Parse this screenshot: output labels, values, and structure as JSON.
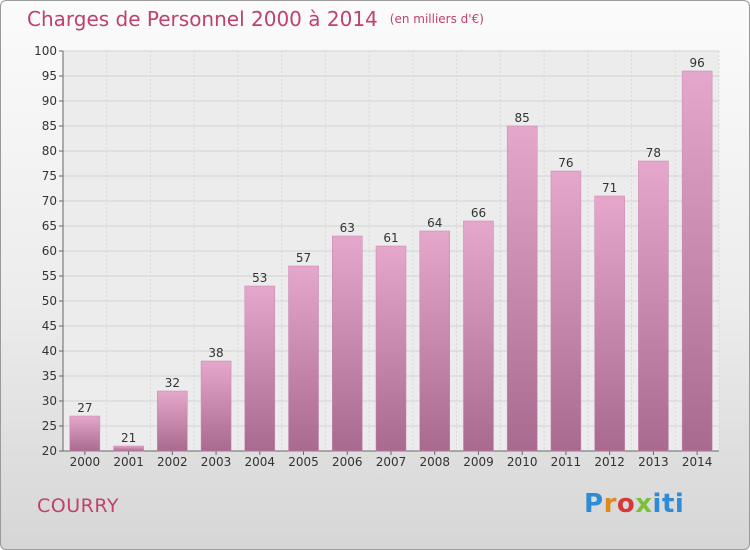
{
  "header": {
    "title": "Charges de Personnel 2000 à 2014",
    "subtitle": "(en milliers d'€)"
  },
  "footer": {
    "location": "COURRY",
    "logo_text": "Proxiti"
  },
  "colors": {
    "title": "#c0406e",
    "bar_top": "#e6a7cc",
    "bar_bottom": "#a96a90"
  },
  "chart_data": {
    "type": "bar",
    "categories": [
      "2000",
      "2001",
      "2002",
      "2003",
      "2004",
      "2005",
      "2006",
      "2007",
      "2008",
      "2009",
      "2010",
      "2011",
      "2012",
      "2013",
      "2014"
    ],
    "values": [
      27,
      21,
      32,
      38,
      53,
      57,
      63,
      61,
      64,
      66,
      85,
      76,
      71,
      78,
      96
    ],
    "title": "Charges de Personnel 2000 à 2014",
    "subtitle": "(en milliers d'€)",
    "ylim": [
      20,
      100
    ],
    "yticks": [
      20,
      25,
      30,
      35,
      40,
      45,
      50,
      55,
      60,
      65,
      70,
      75,
      80,
      85,
      90,
      95,
      100
    ],
    "grid": true,
    "data_labels": true
  }
}
